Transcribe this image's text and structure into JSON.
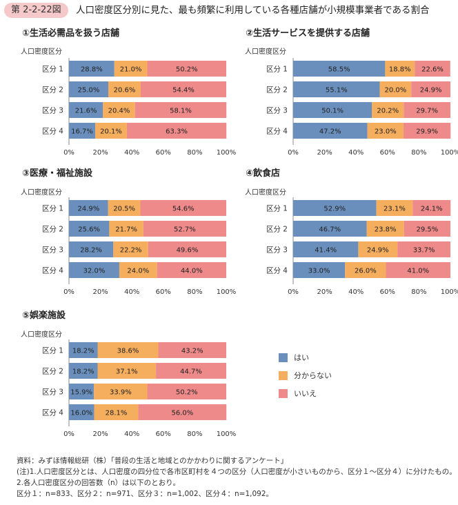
{
  "figure": {
    "badge": "第 2-2-22図",
    "title": "人口密度区分別に見た、最も頻繁に利用している各種店舗が小規模事業者である割合"
  },
  "colors": {
    "yes": "#6a8fbc",
    "unknown": "#f5ad5e",
    "no": "#ee8a8a"
  },
  "legend": [
    {
      "label": "はい",
      "color": "#6a8fbc"
    },
    {
      "label": "分からない",
      "color": "#f5ad5e"
    },
    {
      "label": "いいえ",
      "color": "#ee8a8a"
    }
  ],
  "chart_data": [
    {
      "type": "bar",
      "orientation": "horizontal-stacked",
      "title": "①生活必需品を扱う店舗",
      "category_header": "人口密度区分",
      "categories": [
        "区分 1",
        "区分 2",
        "区分 3",
        "区分 4"
      ],
      "series": [
        {
          "name": "はい",
          "values": [
            28.8,
            25.0,
            21.6,
            16.7
          ]
        },
        {
          "name": "分からない",
          "values": [
            21.0,
            20.6,
            20.4,
            20.1
          ]
        },
        {
          "name": "いいえ",
          "values": [
            50.2,
            54.4,
            58.1,
            63.3
          ]
        }
      ],
      "xlim": [
        0,
        100
      ],
      "xticks": [
        "0%",
        "20%",
        "40%",
        "60%",
        "80%",
        "100%"
      ]
    },
    {
      "type": "bar",
      "orientation": "horizontal-stacked",
      "title": "②生活サービスを提供する店舗",
      "category_header": "人口密度区分",
      "categories": [
        "区分 1",
        "区分 2",
        "区分 3",
        "区分 4"
      ],
      "series": [
        {
          "name": "はい",
          "values": [
            58.5,
            55.1,
            50.1,
            47.2
          ]
        },
        {
          "name": "分からない",
          "values": [
            18.8,
            20.0,
            20.2,
            23.0
          ]
        },
        {
          "name": "いいえ",
          "values": [
            22.6,
            24.9,
            29.7,
            29.9
          ]
        }
      ],
      "xlim": [
        0,
        100
      ],
      "xticks": [
        "0%",
        "20%",
        "40%",
        "60%",
        "80%",
        "100%"
      ]
    },
    {
      "type": "bar",
      "orientation": "horizontal-stacked",
      "title": "③医療・福祉施設",
      "category_header": "人口密度区分",
      "categories": [
        "区分 1",
        "区分 2",
        "区分 3",
        "区分 4"
      ],
      "series": [
        {
          "name": "はい",
          "values": [
            24.9,
            25.6,
            28.2,
            32.0
          ]
        },
        {
          "name": "分からない",
          "values": [
            20.5,
            21.7,
            22.2,
            24.0
          ]
        },
        {
          "name": "いいえ",
          "values": [
            54.6,
            52.7,
            49.6,
            44.0
          ]
        }
      ],
      "xlim": [
        0,
        100
      ],
      "xticks": [
        "0%",
        "20%",
        "40%",
        "60%",
        "80%",
        "100%"
      ]
    },
    {
      "type": "bar",
      "orientation": "horizontal-stacked",
      "title": "④飲食店",
      "category_header": "人口密度区分",
      "categories": [
        "区分 1",
        "区分 2",
        "区分 3",
        "区分 4"
      ],
      "series": [
        {
          "name": "はい",
          "values": [
            52.9,
            46.7,
            41.4,
            33.0
          ]
        },
        {
          "name": "分からない",
          "values": [
            23.1,
            23.8,
            24.9,
            26.0
          ]
        },
        {
          "name": "いいえ",
          "values": [
            24.1,
            29.5,
            33.7,
            41.0
          ]
        }
      ],
      "xlim": [
        0,
        100
      ],
      "xticks": [
        "0%",
        "20%",
        "40%",
        "60%",
        "80%",
        "100%"
      ]
    },
    {
      "type": "bar",
      "orientation": "horizontal-stacked",
      "title": "⑤娯楽施設",
      "category_header": "人口密度区分",
      "categories": [
        "区分 1",
        "区分 2",
        "区分 3",
        "区分 4"
      ],
      "series": [
        {
          "name": "はい",
          "values": [
            18.2,
            18.2,
            15.9,
            16.0
          ]
        },
        {
          "name": "分からない",
          "values": [
            38.6,
            37.1,
            33.9,
            28.1
          ]
        },
        {
          "name": "いいえ",
          "values": [
            43.2,
            44.7,
            50.2,
            56.0
          ]
        }
      ],
      "xlim": [
        0,
        100
      ],
      "xticks": [
        "0%",
        "20%",
        "40%",
        "60%",
        "80%",
        "100%"
      ]
    }
  ],
  "notes": {
    "source": "資料：みずほ情報総研（株）「普段の生活と地域とのかかわりに関するアンケート」",
    "note1": "(注)1.人口密度区分とは、人口密度の四分位で各市区町村を４つの区分（人口密度が小さいものから、区分１～区分４）に分けたもの。",
    "note2": "2.各人口密度区分の回答数（n）は以下のとおり。",
    "note3": "区分１：n=833、区分２：n=971、区分３：n=1,002、区分４：n=1,092。"
  }
}
